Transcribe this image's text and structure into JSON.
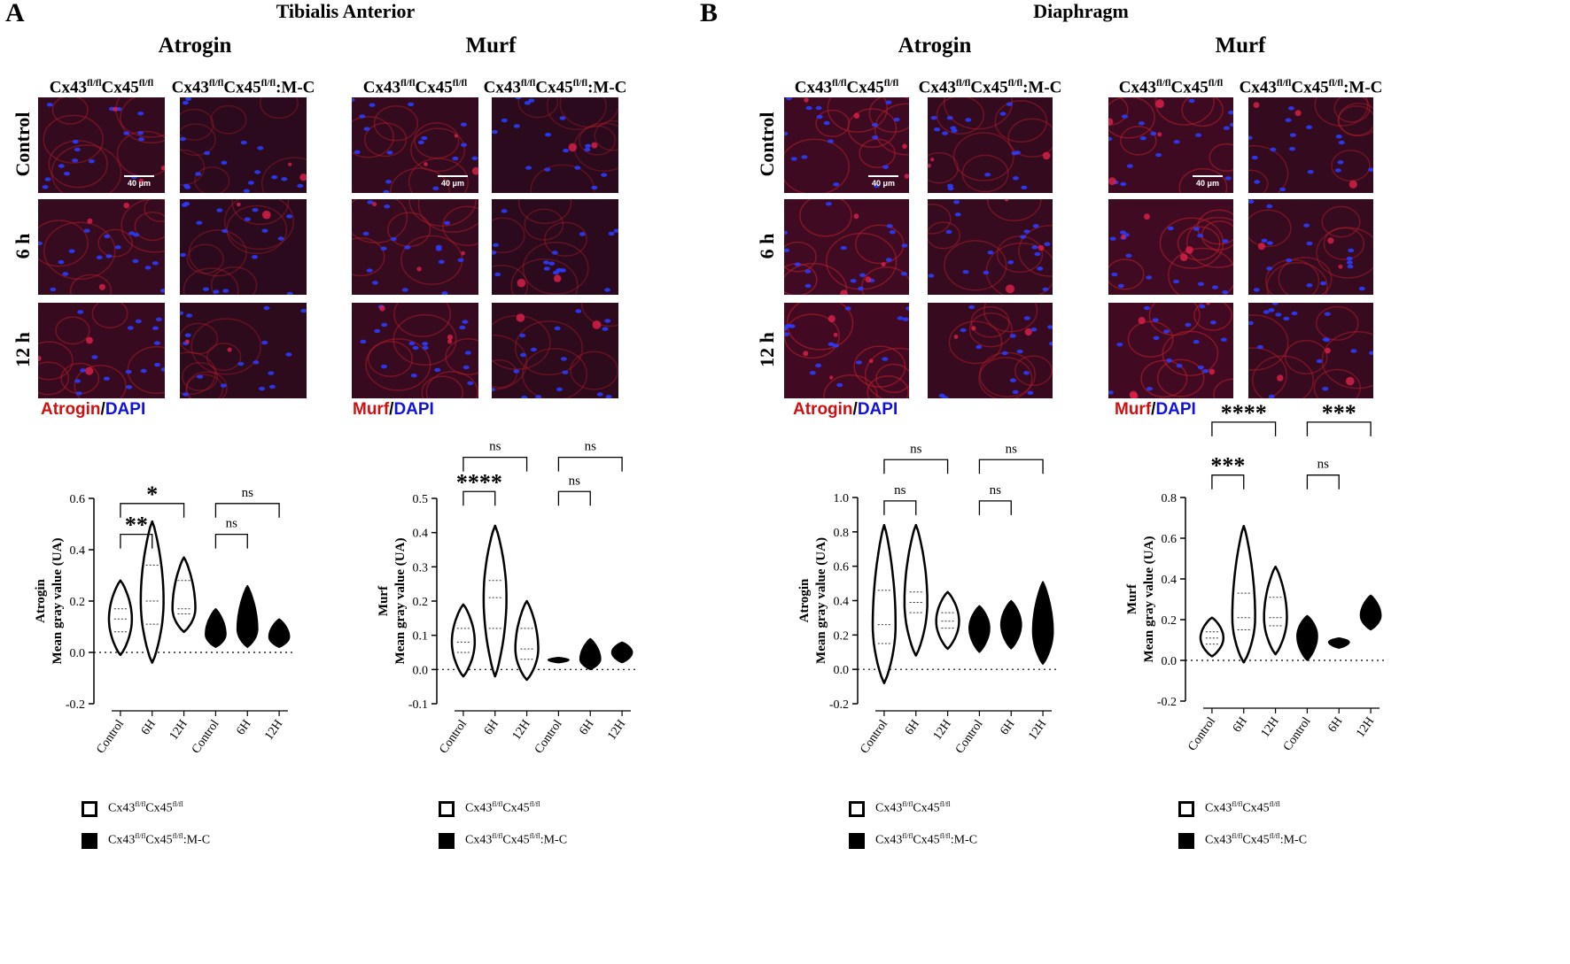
{
  "panels": [
    {
      "letter": "A",
      "muscle": "Tibialis Anterior",
      "markers": [
        {
          "name": "Atrogin",
          "stain_marker": "Atrogin",
          "scale_bar": "40 μm",
          "seed": 11
        },
        {
          "name": "Murf",
          "stain_marker": "Murf",
          "scale_bar": "40 μm",
          "seed": 23
        }
      ]
    },
    {
      "letter": "B",
      "muscle": "Diaphragm",
      "markers": [
        {
          "name": "Atrogin",
          "stain_marker": "Atrogin",
          "scale_bar": "40 μm",
          "seed": 37
        },
        {
          "name": "Murf",
          "stain_marker": "Murf",
          "scale_bar": "40 μm",
          "seed": 53
        }
      ]
    }
  ],
  "genotypes": {
    "wt": {
      "base1": "Cx43",
      "sup1": "fl/fl",
      "base2": "Cx45",
      "sup2": "fl/fl",
      "suffix": ""
    },
    "ko": {
      "base1": "Cx43",
      "sup1": "fl/fl",
      "base2": "Cx45",
      "sup2": "fl/fl",
      "suffix": ":M-C"
    }
  },
  "rows": [
    "Control",
    "6 h",
    "12 h"
  ],
  "stain_sep": "/",
  "stain_dapi": "DAPI",
  "colors": {
    "stain_red": "#d01010",
    "dapi_blue": "#1010e0"
  },
  "chart_data": [
    {
      "type": "violin",
      "ylabel_line1": "Atrogin",
      "ylabel_line2": "Mean gray value (UA)",
      "ylim": [
        -0.2,
        0.6
      ],
      "yticks": [
        "-0.2",
        "0.0",
        "0.2",
        "0.4",
        "0.6"
      ],
      "categories": [
        "Control",
        "6H",
        "12H",
        "Control",
        "6H",
        "12H"
      ],
      "series": [
        {
          "fill": "white",
          "groups": [
            {
              "min": -0.01,
              "max": 0.28,
              "median": 0.13,
              "q1": 0.08,
              "q3": 0.17
            },
            {
              "min": -0.04,
              "max": 0.51,
              "median": 0.2,
              "q1": 0.11,
              "q3": 0.34
            },
            {
              "min": 0.08,
              "max": 0.37,
              "median": 0.17,
              "q1": 0.15,
              "q3": 0.28
            }
          ]
        },
        {
          "fill": "black",
          "groups": [
            {
              "min": 0.02,
              "max": 0.17,
              "median": 0.07
            },
            {
              "min": 0.02,
              "max": 0.26,
              "median": 0.09
            },
            {
              "min": 0.02,
              "max": 0.13,
              "median": 0.06
            }
          ]
        }
      ],
      "significance": [
        {
          "from": 0,
          "to": 1,
          "label": "**",
          "level": 0.46
        },
        {
          "from": 0,
          "to": 2,
          "label": "*",
          "level": 0.58
        },
        {
          "from": 3,
          "to": 4,
          "label": "ns",
          "level": 0.46
        },
        {
          "from": 3,
          "to": 5,
          "label": "ns",
          "level": 0.58
        }
      ],
      "legend": [
        "wt",
        "ko"
      ]
    },
    {
      "type": "violin",
      "ylabel_line1": "Murf",
      "ylabel_line2": "Mean gray value (UA)",
      "ylim": [
        -0.1,
        0.5
      ],
      "yticks": [
        "-0.1",
        "0.0",
        "0.1",
        "0.2",
        "0.3",
        "0.4",
        "0.5"
      ],
      "categories": [
        "Control",
        "6H",
        "12H",
        "Control",
        "6H",
        "12H"
      ],
      "series": [
        {
          "fill": "white",
          "groups": [
            {
              "min": -0.02,
              "max": 0.19,
              "median": 0.08,
              "q1": 0.05,
              "q3": 0.12
            },
            {
              "min": -0.02,
              "max": 0.42,
              "median": 0.21,
              "q1": 0.12,
              "q3": 0.26
            },
            {
              "min": -0.03,
              "max": 0.2,
              "median": 0.06,
              "q1": 0.03,
              "q3": 0.12
            }
          ]
        },
        {
          "fill": "black",
          "groups": [
            {
              "min": 0.02,
              "max": 0.035,
              "median": 0.028
            },
            {
              "min": 0.0,
              "max": 0.09,
              "median": 0.03
            },
            {
              "min": 0.02,
              "max": 0.08,
              "median": 0.05
            }
          ]
        }
      ],
      "significance": [
        {
          "from": 0,
          "to": 1,
          "label": "****",
          "level": 0.52
        },
        {
          "from": 0,
          "to": 2,
          "label": "ns",
          "level": 0.62
        },
        {
          "from": 3,
          "to": 4,
          "label": "ns",
          "level": 0.52
        },
        {
          "from": 3,
          "to": 5,
          "label": "ns",
          "level": 0.62
        }
      ],
      "legend": [
        "wt",
        "ko"
      ]
    },
    {
      "type": "violin",
      "ylabel_line1": "Atrogin",
      "ylabel_line2": "Mean gray value (UA)",
      "ylim": [
        -0.2,
        1.0
      ],
      "yticks": [
        "-0.2",
        "0.0",
        "0.2",
        "0.4",
        "0.6",
        "0.8",
        "1.0"
      ],
      "categories": [
        "Control",
        "6H",
        "12H",
        "Control",
        "6H",
        "12H"
      ],
      "series": [
        {
          "fill": "white",
          "groups": [
            {
              "min": -0.08,
              "max": 0.84,
              "median": 0.26,
              "q1": 0.15,
              "q3": 0.46
            },
            {
              "min": 0.08,
              "max": 0.84,
              "median": 0.39,
              "q1": 0.33,
              "q3": 0.45
            },
            {
              "min": 0.12,
              "max": 0.45,
              "median": 0.28,
              "q1": 0.24,
              "q3": 0.33
            }
          ]
        },
        {
          "fill": "black",
          "groups": [
            {
              "min": 0.1,
              "max": 0.37,
              "median": 0.24
            },
            {
              "min": 0.12,
              "max": 0.4,
              "median": 0.26
            },
            {
              "min": 0.03,
              "max": 0.51,
              "median": 0.22
            }
          ]
        }
      ],
      "significance": [
        {
          "from": 0,
          "to": 1,
          "label": "ns",
          "level": 0.98
        },
        {
          "from": 0,
          "to": 2,
          "label": "ns",
          "level": 1.22
        },
        {
          "from": 3,
          "to": 4,
          "label": "ns",
          "level": 0.98
        },
        {
          "from": 3,
          "to": 5,
          "label": "ns",
          "level": 1.22
        }
      ],
      "legend": [
        "wt",
        "ko"
      ]
    },
    {
      "type": "violin",
      "ylabel_line1": "Murf",
      "ylabel_line2": "Mean gray value (UA)",
      "ylim": [
        -0.2,
        0.8
      ],
      "yticks": [
        "-0.2",
        "0.0",
        "0.2",
        "0.4",
        "0.6",
        "0.8"
      ],
      "categories": [
        "Control",
        "6H",
        "12H",
        "Control",
        "6H",
        "12H"
      ],
      "series": [
        {
          "fill": "white",
          "groups": [
            {
              "min": 0.02,
              "max": 0.21,
              "median": 0.11,
              "q1": 0.08,
              "q3": 0.14
            },
            {
              "min": -0.01,
              "max": 0.66,
              "median": 0.21,
              "q1": 0.15,
              "q3": 0.33
            },
            {
              "min": 0.03,
              "max": 0.46,
              "median": 0.21,
              "q1": 0.17,
              "q3": 0.31
            }
          ]
        },
        {
          "fill": "black",
          "groups": [
            {
              "min": 0.0,
              "max": 0.22,
              "median": 0.12
            },
            {
              "min": 0.06,
              "max": 0.11,
              "median": 0.09
            },
            {
              "min": 0.15,
              "max": 0.32,
              "median": 0.22
            }
          ]
        }
      ],
      "significance": [
        {
          "from": 0,
          "to": 1,
          "label": "***",
          "level": 0.91
        },
        {
          "from": 0,
          "to": 2,
          "label": "****",
          "level": 1.17
        },
        {
          "from": 3,
          "to": 4,
          "label": "ns",
          "level": 0.91
        },
        {
          "from": 3,
          "to": 5,
          "label": "***",
          "level": 1.17
        }
      ],
      "legend": [
        "wt",
        "ko"
      ]
    }
  ]
}
